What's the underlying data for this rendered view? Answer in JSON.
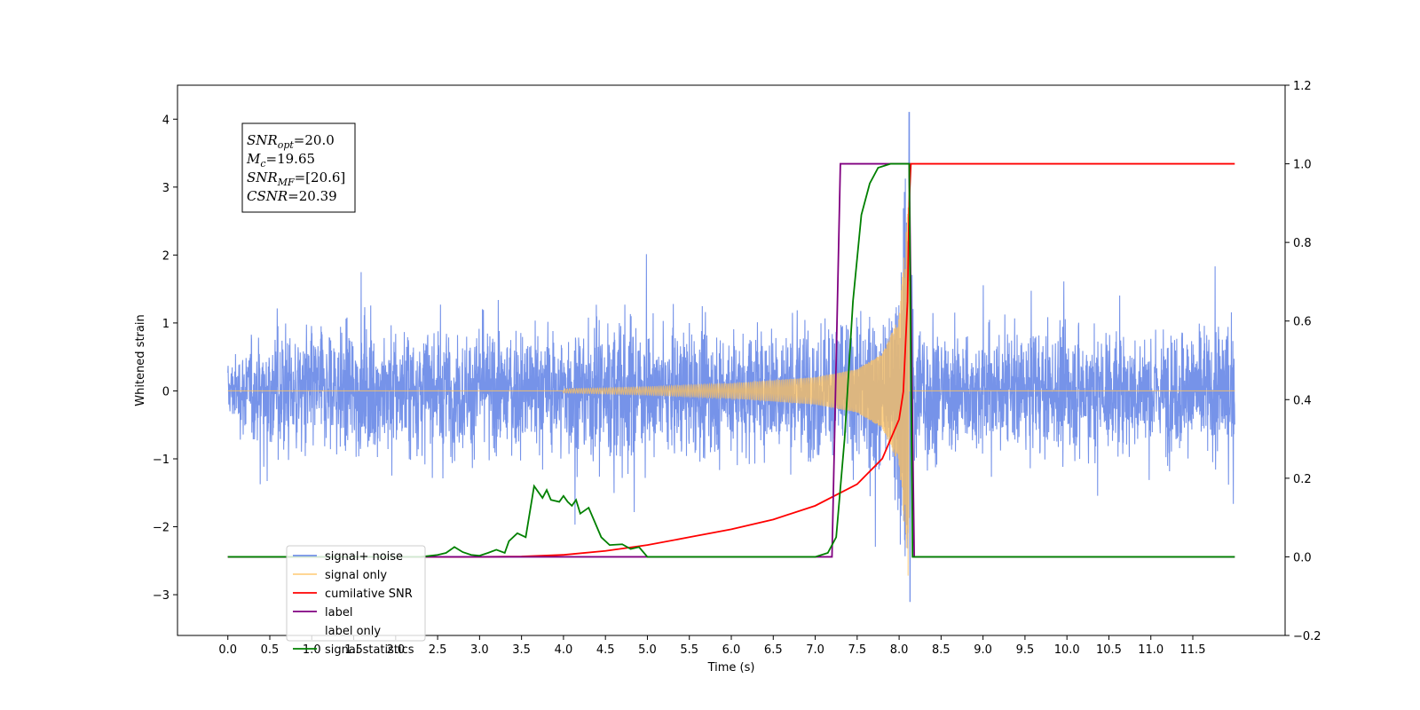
{
  "chart_data": {
    "type": "line",
    "title": "",
    "xlabel": "Time (s)",
    "ylabel": "Whitened strain",
    "ylabel_right": "",
    "xlim": [
      -0.6,
      12.6
    ],
    "ylim": [
      -3.6,
      4.5
    ],
    "ylim_right": [
      -0.2,
      1.2
    ],
    "x_ticks": [
      "0.0",
      "0.5",
      "1.0",
      "1.5",
      "2.0",
      "2.5",
      "3.0",
      "3.5",
      "4.0",
      "4.5",
      "5.0",
      "5.5",
      "6.0",
      "6.5",
      "7.0",
      "7.5",
      "8.0",
      "8.5",
      "9.0",
      "9.5",
      "10.0",
      "10.5",
      "11.0",
      "11.5"
    ],
    "y_ticks": [
      "−3",
      "−2",
      "−1",
      "0",
      "1",
      "2",
      "3",
      "4"
    ],
    "y_ticks_right": [
      "−0.2",
      "0.0",
      "0.2",
      "0.4",
      "0.6",
      "0.8",
      "1.0",
      "1.2"
    ],
    "grid": false,
    "legend_position": "bottom-left",
    "series": [
      {
        "name": "signal+ noise",
        "axis": "left",
        "color": "#4169e1",
        "style": "dense noise band, approx ±1.2 typical amplitude, peaks to about ±2.6 (max ~4.1 at t=8.1)",
        "x_range": [
          0.0,
          12.0
        ],
        "envelope_points": [
          [
            0.0,
            1.1
          ],
          [
            0.5,
            2.6
          ],
          [
            1.0,
            2.4
          ],
          [
            2.0,
            2.5
          ],
          [
            3.0,
            2.3
          ],
          [
            4.0,
            2.4
          ],
          [
            4.7,
            3.2
          ],
          [
            5.0,
            2.3
          ],
          [
            6.0,
            2.4
          ],
          [
            7.0,
            2.4
          ],
          [
            8.0,
            2.4
          ],
          [
            8.12,
            4.1
          ],
          [
            8.5,
            2.4
          ],
          [
            9.0,
            2.3
          ],
          [
            10.0,
            2.4
          ],
          [
            11.0,
            2.3
          ],
          [
            11.9,
            2.6
          ],
          [
            12.0,
            2.2
          ]
        ]
      },
      {
        "name": "signal only",
        "axis": "left",
        "color": "#ffc15c",
        "style": "chirp oscillation with growing amplitude ending at merger",
        "chirp_start": 4.0,
        "chirp_end": 8.12,
        "amplitude_points": [
          [
            4.0,
            0.03
          ],
          [
            5.0,
            0.06
          ],
          [
            6.0,
            0.11
          ],
          [
            7.0,
            0.2
          ],
          [
            7.5,
            0.32
          ],
          [
            7.8,
            0.55
          ],
          [
            8.0,
            1.1
          ],
          [
            8.1,
            2.6
          ],
          [
            8.12,
            3.2
          ]
        ]
      },
      {
        "name": "cumilative SNR",
        "axis": "right",
        "color": "#ff0000",
        "points": [
          [
            0.0,
            0.0
          ],
          [
            3.0,
            0.0
          ],
          [
            3.5,
            0.001
          ],
          [
            4.0,
            0.005
          ],
          [
            4.5,
            0.015
          ],
          [
            5.0,
            0.03
          ],
          [
            5.5,
            0.05
          ],
          [
            6.0,
            0.07
          ],
          [
            6.5,
            0.095
          ],
          [
            7.0,
            0.13
          ],
          [
            7.5,
            0.185
          ],
          [
            7.8,
            0.25
          ],
          [
            8.0,
            0.35
          ],
          [
            8.05,
            0.42
          ],
          [
            8.1,
            0.65
          ],
          [
            8.12,
            0.9
          ],
          [
            8.14,
            1.0
          ],
          [
            12.0,
            1.0
          ]
        ]
      },
      {
        "name": "label",
        "axis": "right",
        "color": "#800080",
        "points": [
          [
            0.0,
            0.0
          ],
          [
            7.2,
            0.0
          ],
          [
            7.3,
            1.0
          ],
          [
            8.12,
            1.0
          ],
          [
            8.18,
            0.0
          ],
          [
            12.0,
            0.0
          ]
        ]
      },
      {
        "name": "label only",
        "axis": "right",
        "color": "",
        "points": []
      },
      {
        "name": "signal statistics",
        "axis": "right",
        "color": "#008000",
        "points": [
          [
            0.0,
            0.0
          ],
          [
            2.3,
            0.0
          ],
          [
            2.5,
            0.005
          ],
          [
            2.6,
            0.01
          ],
          [
            2.7,
            0.025
          ],
          [
            2.8,
            0.012
          ],
          [
            2.9,
            0.005
          ],
          [
            3.0,
            0.003
          ],
          [
            3.1,
            0.01
          ],
          [
            3.2,
            0.018
          ],
          [
            3.3,
            0.01
          ],
          [
            3.35,
            0.04
          ],
          [
            3.45,
            0.06
          ],
          [
            3.55,
            0.05
          ],
          [
            3.65,
            0.18
          ],
          [
            3.75,
            0.15
          ],
          [
            3.8,
            0.17
          ],
          [
            3.85,
            0.145
          ],
          [
            3.95,
            0.14
          ],
          [
            4.0,
            0.155
          ],
          [
            4.05,
            0.14
          ],
          [
            4.1,
            0.13
          ],
          [
            4.15,
            0.145
          ],
          [
            4.2,
            0.11
          ],
          [
            4.3,
            0.125
          ],
          [
            4.35,
            0.1
          ],
          [
            4.45,
            0.05
          ],
          [
            4.55,
            0.03
          ],
          [
            4.7,
            0.032
          ],
          [
            4.8,
            0.02
          ],
          [
            4.9,
            0.025
          ],
          [
            5.0,
            0.0
          ],
          [
            7.0,
            0.0
          ],
          [
            7.15,
            0.01
          ],
          [
            7.25,
            0.05
          ],
          [
            7.35,
            0.3
          ],
          [
            7.45,
            0.65
          ],
          [
            7.55,
            0.87
          ],
          [
            7.65,
            0.95
          ],
          [
            7.75,
            0.99
          ],
          [
            7.9,
            1.0
          ],
          [
            8.12,
            1.0
          ],
          [
            8.16,
            0.0
          ],
          [
            12.0,
            0.0
          ]
        ]
      }
    ],
    "annotation": {
      "lines": [
        {
          "main": "SNR",
          "sub": "opt",
          "rest": "=20.0"
        },
        {
          "main": "M",
          "sub": "c",
          "rest": "=19.65"
        },
        {
          "main": "SNR",
          "sub": "MF",
          "rest": "=[20.6]"
        },
        {
          "main": "CSNR",
          "sub": "",
          "rest": "=20.39"
        }
      ]
    }
  }
}
